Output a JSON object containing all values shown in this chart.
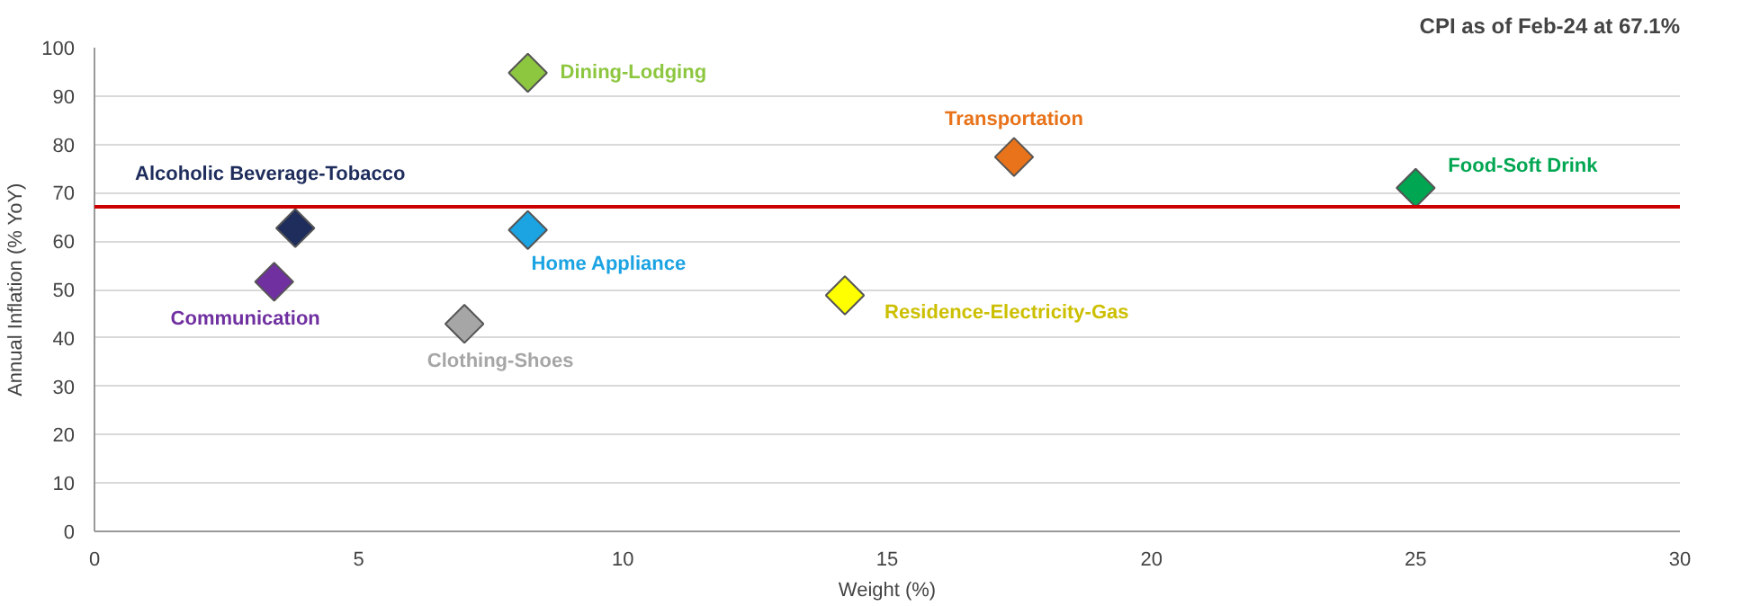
{
  "chart_data": {
    "type": "scatter",
    "title": "CPI as of Feb-24 at 67.1%",
    "xlabel": "Weight (%)",
    "ylabel": "Annual Inflation (% YoY)",
    "xlim": [
      0,
      30
    ],
    "xticks": [
      0,
      5,
      10,
      15,
      20,
      25,
      30
    ],
    "ylim": [
      0,
      100
    ],
    "yticks": [
      0,
      10,
      20,
      30,
      40,
      50,
      60,
      70,
      80,
      90,
      100
    ],
    "grid": "y",
    "marker": "diamond",
    "series": [
      {
        "name": "Dining-Lodging",
        "color": "#8dc63f",
        "x": [
          8.2
        ],
        "values": [
          94.8
        ]
      },
      {
        "name": "Transportation",
        "color": "#e8731a",
        "x": [
          17.4
        ],
        "values": [
          77.4
        ]
      },
      {
        "name": "Food-Soft Drink",
        "color": "#00a651",
        "x": [
          25.0
        ],
        "values": [
          71.0
        ]
      },
      {
        "name": "Alcoholic Beverage-Tobacco",
        "color": "#1f2d5c",
        "x": [
          3.8
        ],
        "values": [
          62.7
        ]
      },
      {
        "name": "Home Appliance",
        "color": "#1ba3e2",
        "x": [
          8.2
        ],
        "values": [
          62.3
        ]
      },
      {
        "name": "Communication",
        "color": "#7030a0",
        "x": [
          3.4
        ],
        "values": [
          51.6
        ]
      },
      {
        "name": "Residence-Electricity-Gas",
        "color": "#ffff00",
        "x": [
          14.2
        ],
        "values": [
          48.8
        ]
      },
      {
        "name": "Clothing-Shoes",
        "color": "#a6a6a6",
        "x": [
          7.0
        ],
        "values": [
          42.9
        ]
      }
    ],
    "ref_lines": [
      {
        "axis": "y",
        "value": 67.1,
        "color": "#cc0000"
      }
    ]
  }
}
